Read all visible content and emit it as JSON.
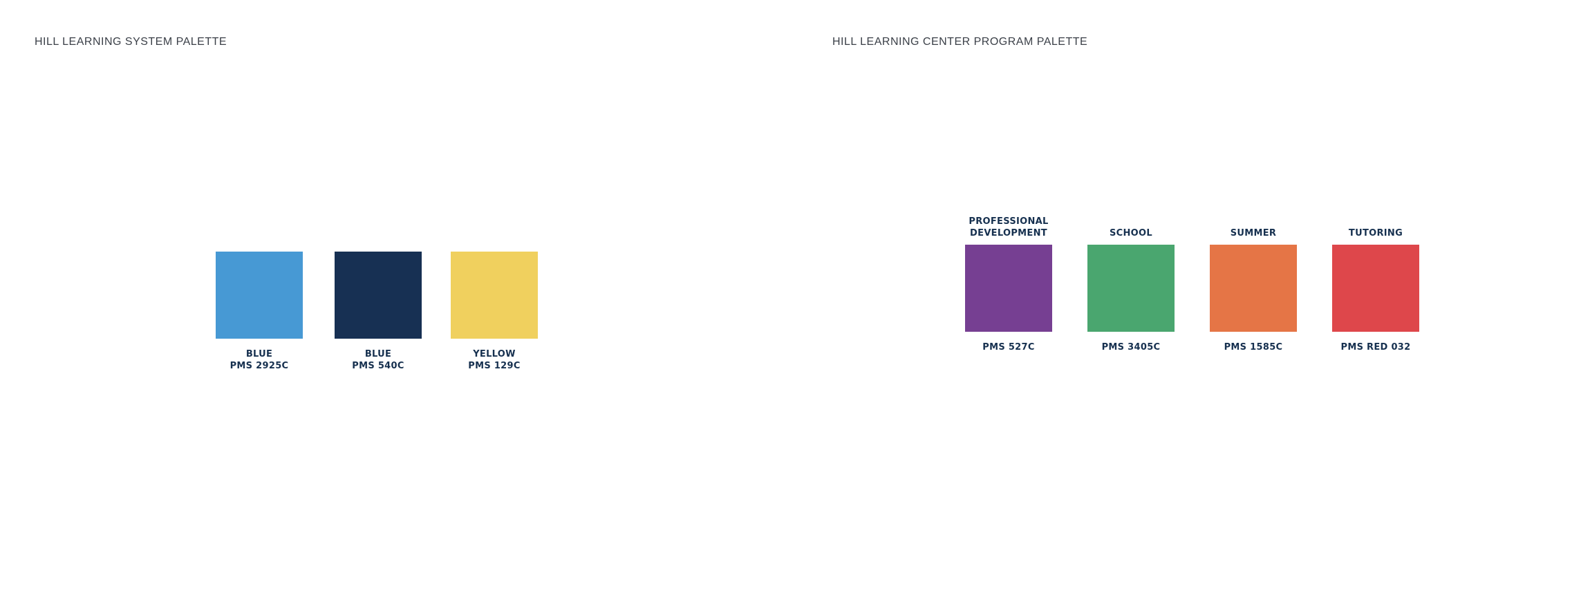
{
  "left_palette": {
    "title": "HILL LEARNING SYSTEM PALETTE",
    "swatches": [
      {
        "name": "BLUE",
        "pms": "PMS 2925C",
        "color": "#4799d4"
      },
      {
        "name": "BLUE",
        "pms": "PMS 540C",
        "color": "#173053"
      },
      {
        "name": "YELLOW",
        "pms": "PMS 129C",
        "color": "#f0d05e"
      }
    ]
  },
  "right_palette": {
    "title": "HILL LEARNING CENTER PROGRAM PALETTE",
    "swatches": [
      {
        "top_line1": "PROFESSIONAL",
        "top_line2": "DEVELOPMENT",
        "pms": "PMS 527C",
        "color": "#763f92"
      },
      {
        "top_line1": "",
        "top_line2": "SCHOOL",
        "pms": "PMS 3405C",
        "color": "#4aa66f"
      },
      {
        "top_line1": "",
        "top_line2": "SUMMER",
        "pms": "PMS 1585C",
        "color": "#e57546"
      },
      {
        "top_line1": "",
        "top_line2": "TUTORING",
        "pms": "PMS RED 032",
        "color": "#de474b"
      }
    ]
  }
}
